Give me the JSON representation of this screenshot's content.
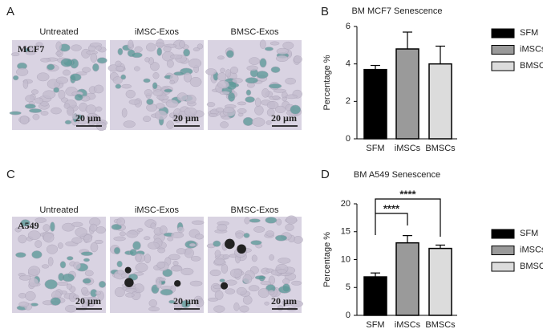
{
  "panels": {
    "letters": [
      "A",
      "B",
      "C",
      "D"
    ],
    "rows": [
      {
        "cell_line": "MCF7",
        "columns": [
          "Untreated",
          "iMSC-Exos",
          "BMSC-Exos"
        ],
        "scale_bars": [
          "20 µm",
          "20 µm",
          "20 µm"
        ]
      },
      {
        "cell_line": "A549",
        "columns": [
          "Untreated",
          "iMSC-Exos",
          "BMSC-Exos"
        ],
        "scale_bars": [
          "20 µm",
          "20 µm",
          "20 µm"
        ]
      }
    ]
  },
  "chart_data": [
    {
      "type": "bar",
      "title": "BM MCF7 Senescence",
      "y_label": "Percentage %",
      "categories": [
        "SFM",
        "iMSCs",
        "BMSCs"
      ],
      "values": [
        3.7,
        4.8,
        4.0
      ],
      "errors": [
        0.22,
        0.9,
        0.95
      ],
      "colors": [
        "#000000",
        "#9a9a9a",
        "#dcdcdc"
      ],
      "ylim": [
        0,
        6
      ],
      "yticks": [
        0,
        2,
        4,
        6
      ],
      "grid": false,
      "legend": "right"
    },
    {
      "type": "bar",
      "title": "BM A549 Senescence",
      "y_label": "Percentage %",
      "categories": [
        "SFM",
        "iMSCs",
        "BMSCs"
      ],
      "values": [
        6.9,
        13.0,
        12.0
      ],
      "errors": [
        0.7,
        1.3,
        0.6
      ],
      "colors": [
        "#000000",
        "#9a9a9a",
        "#dcdcdc"
      ],
      "ylim": [
        0,
        20
      ],
      "yticks": [
        0,
        5,
        10,
        15,
        20
      ],
      "grid": false,
      "legend": "right",
      "annotations": [
        "****",
        "****"
      ]
    }
  ]
}
